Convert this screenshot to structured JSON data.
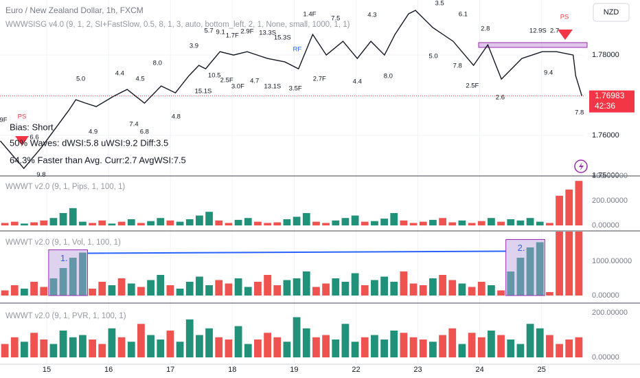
{
  "chart_data": [
    {
      "type": "line",
      "title": "Euro / New Zealand Dollar, 1h, FXCM",
      "subtitle": "WWWSISG v4.0 (9, 1, 2, SI+FastSlow, 0.5, 8, 1, 3, auto, bottom_left, 2, 1, None, small, 1000, 1, 1)",
      "currency": "NZD",
      "info": [
        "Bias: Short",
        "50% Waves: dWSI:5.8 uWSI:9.2 Diff:3.5",
        "64.3% Faster than Avg. Curr:2.7 AvgWSI:7.5"
      ],
      "color": "#131722",
      "x": [
        -0.75,
        -0.37,
        -0.09,
        0.36,
        0.47,
        0.63,
        0.8,
        1.08,
        1.3,
        1.58,
        1.85,
        2.08,
        2.3,
        2.46,
        2.57,
        2.8,
        3.02,
        3.24,
        3.57,
        3.85,
        4.07,
        4.3,
        4.52,
        4.79,
        5.02,
        5.24,
        5.46,
        5.63,
        5.85,
        5.96,
        6.24,
        6.57,
        6.9,
        7.13,
        7.35,
        7.68,
        8.01,
        8.24,
        8.51,
        8.55,
        8.65
      ],
      "values": [
        1.75863,
        1.75179,
        1.75692,
        1.76632,
        1.76889,
        1.76803,
        1.76718,
        1.76974,
        1.77145,
        1.76803,
        1.77231,
        1.7706,
        1.77487,
        1.77744,
        1.77658,
        1.78085,
        1.78,
        1.78085,
        1.77915,
        1.77829,
        1.77658,
        1.78513,
        1.78,
        1.78342,
        1.77915,
        1.78342,
        1.78,
        1.78513,
        1.79026,
        1.79111,
        1.78684,
        1.78342,
        1.77744,
        1.78256,
        1.77402,
        1.77915,
        1.78085,
        1.78085,
        1.78,
        1.77487,
        1.76983
      ],
      "last_price": 1.76983,
      "last_price_label": "1.76983",
      "last_price_color": "#f23645",
      "countdown": "42:36",
      "xlim": [
        -0.755,
        8.68
      ],
      "ylim": [
        1.7501,
        1.7937
      ],
      "xticks": [
        {
          "value": 0,
          "label": "15"
        },
        {
          "value": 1,
          "label": "16"
        },
        {
          "value": 2,
          "label": "17"
        },
        {
          "value": 3,
          "label": "18"
        },
        {
          "value": 4,
          "label": "19"
        },
        {
          "value": 5,
          "label": "22"
        },
        {
          "value": 6,
          "label": "23"
        },
        {
          "value": 7,
          "label": "24"
        },
        {
          "value": 8,
          "label": "25"
        }
      ],
      "yticks": [
        {
          "value": 1.75,
          "label": "1.75000"
        },
        {
          "value": 1.76,
          "label": "1.76000"
        },
        {
          "value": 1.78,
          "label": "1.78000"
        }
      ],
      "grid": true,
      "annotation_color": "#131722",
      "annotations": [
        {
          "text": "9F",
          "x": -0.7,
          "y": 1.76376
        },
        {
          "text": "PS",
          "x": -0.4,
          "y": 1.76462,
          "color": "#f23645"
        },
        {
          "text": "6.6",
          "x": -0.2,
          "y": 1.75949
        },
        {
          "text": "9.8",
          "x": -0.09,
          "y": 1.7502
        },
        {
          "text": "5.0",
          "x": 0.55,
          "y": 1.77402
        },
        {
          "text": "4.9",
          "x": 0.75,
          "y": 1.76085
        },
        {
          "text": "4.4",
          "x": 1.18,
          "y": 1.77538
        },
        {
          "text": "7.4",
          "x": 1.41,
          "y": 1.76274
        },
        {
          "text": "6.8",
          "x": 1.58,
          "y": 1.76085
        },
        {
          "text": "4.5",
          "x": 1.51,
          "y": 1.77402
        },
        {
          "text": "8.0",
          "x": 1.79,
          "y": 1.77795
        },
        {
          "text": "4.8",
          "x": 2.09,
          "y": 1.76462
        },
        {
          "text": "3.9",
          "x": 2.38,
          "y": 1.78222
        },
        {
          "text": "15.1S",
          "x": 2.53,
          "y": 1.77094
        },
        {
          "text": "5.7",
          "x": 2.62,
          "y": 1.78598
        },
        {
          "text": "9.1",
          "x": 2.81,
          "y": 1.78564
        },
        {
          "text": "1.7F",
          "x": 3.0,
          "y": 1.78479
        },
        {
          "text": "2.9F",
          "x": 3.24,
          "y": 1.78581
        },
        {
          "text": "10.5",
          "x": 2.71,
          "y": 1.77487
        },
        {
          "text": "2.5F",
          "x": 2.91,
          "y": 1.77368
        },
        {
          "text": "3.0F",
          "x": 3.09,
          "y": 1.77214
        },
        {
          "text": "4.7",
          "x": 3.36,
          "y": 1.7735
        },
        {
          "text": "13.3S",
          "x": 3.57,
          "y": 1.78547
        },
        {
          "text": "15.3S",
          "x": 3.81,
          "y": 1.78427
        },
        {
          "text": "13.1S",
          "x": 3.65,
          "y": 1.77214
        },
        {
          "text": "3.5F",
          "x": 4.02,
          "y": 1.77162
        },
        {
          "text": "RF",
          "x": 4.05,
          "y": 1.78137,
          "color": "#2962ff"
        },
        {
          "text": "1.4F",
          "x": 4.25,
          "y": 1.79009
        },
        {
          "text": "7.5",
          "x": 4.67,
          "y": 1.78906
        },
        {
          "text": "2.7F",
          "x": 4.41,
          "y": 1.77402
        },
        {
          "text": "4.3",
          "x": 5.26,
          "y": 1.78991
        },
        {
          "text": "4.4",
          "x": 5.02,
          "y": 1.77333
        },
        {
          "text": "8.0",
          "x": 5.52,
          "y": 1.7747
        },
        {
          "text": "5.0",
          "x": 6.25,
          "y": 1.77966
        },
        {
          "text": "3.5",
          "x": 6.35,
          "y": 1.79282
        },
        {
          "text": "6.1",
          "x": 6.73,
          "y": 1.79009
        },
        {
          "text": "2.8",
          "x": 7.09,
          "y": 1.7865
        },
        {
          "text": "7.8",
          "x": 6.64,
          "y": 1.77726
        },
        {
          "text": "2.5F",
          "x": 6.88,
          "y": 1.77231
        },
        {
          "text": "2.6",
          "x": 7.33,
          "y": 1.7694
        },
        {
          "text": "12.9S",
          "x": 7.94,
          "y": 1.78598
        },
        {
          "text": "2.7",
          "x": 8.21,
          "y": 1.78598
        },
        {
          "text": "PS",
          "x": 8.37,
          "y": 1.7894,
          "color": "#f23645"
        },
        {
          "text": "9.4",
          "x": 8.11,
          "y": 1.77556
        },
        {
          "text": "7.8",
          "x": 8.61,
          "y": 1.76564
        }
      ]
    },
    {
      "type": "bar",
      "title": "WWWT v2.0 (9, 1, Pips, 1, 100, 1)",
      "values": [
        20,
        30,
        15,
        25,
        40,
        60,
        100,
        140,
        30,
        20,
        40,
        15,
        30,
        50,
        20,
        35,
        60,
        40,
        30,
        50,
        80,
        110,
        40,
        20,
        45,
        60,
        30,
        20,
        25,
        50,
        70,
        100,
        30,
        20,
        40,
        60,
        80,
        30,
        35,
        55,
        100,
        40,
        20,
        30,
        45,
        60,
        25,
        40,
        20,
        35,
        60,
        30,
        50,
        40,
        60,
        30,
        20,
        240,
        290,
        360
      ],
      "colors": [
        "#ef5350",
        "#ef5350",
        "#22917a",
        "#ef5350",
        "#ef5350",
        "#22917a",
        "#22917a",
        "#22917a",
        "#22917a",
        "#ef5350",
        "#ef5350",
        "#22917a",
        "#ef5350",
        "#22917a",
        "#ef5350",
        "#22917a",
        "#22917a",
        "#ef5350",
        "#22917a",
        "#22917a",
        "#22917a",
        "#22917a",
        "#ef5350",
        "#ef5350",
        "#22917a",
        "#22917a",
        "#ef5350",
        "#ef5350",
        "#ef5350",
        "#22917a",
        "#22917a",
        "#22917a",
        "#ef5350",
        "#ef5350",
        "#22917a",
        "#22917a",
        "#22917a",
        "#ef5350",
        "#22917a",
        "#22917a",
        "#22917a",
        "#ef5350",
        "#ef5350",
        "#ef5350",
        "#22917a",
        "#ef5350",
        "#ef5350",
        "#22917a",
        "#ef5350",
        "#ef5350",
        "#22917a",
        "#ef5350",
        "#22917a",
        "#22917a",
        "#22917a",
        "#22917a",
        "#ef5350",
        "#ef5350",
        "#ef5350",
        "#ef5350"
      ],
      "ylim": [
        0,
        400
      ],
      "yticks": [
        {
          "value": 0,
          "label": "0.00000"
        },
        {
          "value": 200,
          "label": "200.00000"
        },
        {
          "value": 400,
          "label": "400.00000"
        }
      ]
    },
    {
      "type": "bar",
      "title": "WWWT v2.0 (9, 1, Vol, 1, 100, 1)",
      "values": [
        150,
        300,
        200,
        400,
        250,
        500,
        800,
        1100,
        1250,
        200,
        400,
        300,
        500,
        350,
        250,
        450,
        600,
        300,
        200,
        400,
        550,
        300,
        450,
        350,
        500,
        250,
        400,
        600,
        300,
        450,
        500,
        700,
        250,
        350,
        500,
        400,
        650,
        300,
        450,
        550,
        400,
        700,
        350,
        300,
        500,
        600,
        450,
        350,
        250,
        400,
        300,
        150,
        700,
        1100,
        1400,
        1550,
        100,
        1860,
        1860,
        1860
      ],
      "colors": [
        "#ef5350",
        "#ef5350",
        "#22917a",
        "#ef5350",
        "#ef5350",
        "#22917a",
        "#22917a",
        "#22917a",
        "#22917a",
        "#ef5350",
        "#ef5350",
        "#22917a",
        "#ef5350",
        "#22917a",
        "#ef5350",
        "#22917a",
        "#22917a",
        "#ef5350",
        "#22917a",
        "#22917a",
        "#22917a",
        "#22917a",
        "#ef5350",
        "#ef5350",
        "#22917a",
        "#22917a",
        "#ef5350",
        "#ef5350",
        "#ef5350",
        "#22917a",
        "#22917a",
        "#22917a",
        "#ef5350",
        "#ef5350",
        "#22917a",
        "#22917a",
        "#22917a",
        "#ef5350",
        "#22917a",
        "#22917a",
        "#22917a",
        "#ef5350",
        "#ef5350",
        "#ef5350",
        "#22917a",
        "#ef5350",
        "#ef5350",
        "#22917a",
        "#ef5350",
        "#ef5350",
        "#22917a",
        "#ef5350",
        "#22917a",
        "#22917a",
        "#22917a",
        "#22917a",
        "#ef5350",
        "#ef5350",
        "#ef5350",
        "#ef5350"
      ],
      "boxes": [
        {
          "label": "1.",
          "from": 5,
          "to": 8
        },
        {
          "label": "2.",
          "from": 52,
          "to": 55
        }
      ],
      "ylim": [
        0,
        1860
      ],
      "yticks": [
        {
          "value": 0,
          "label": "0.00000"
        },
        {
          "value": 1000,
          "label": "1000.00000"
        }
      ]
    },
    {
      "type": "bar",
      "title": "WWWT v2.0 (9, 1, PVR, 1, 100, 1)",
      "values": [
        60,
        90,
        70,
        110,
        80,
        60,
        120,
        90,
        100,
        80,
        60,
        130,
        90,
        70,
        150,
        100,
        80,
        120,
        70,
        170,
        100,
        130,
        90,
        80,
        140,
        60,
        80,
        110,
        90,
        70,
        180,
        130,
        90,
        100,
        80,
        150,
        70,
        90,
        100,
        80,
        120,
        110,
        90,
        80,
        70,
        100,
        130,
        60,
        110,
        90,
        120,
        100,
        80,
        60,
        150,
        130,
        100,
        60,
        80,
        90
      ],
      "colors": [
        "#ef5350",
        "#ef5350",
        "#22917a",
        "#ef5350",
        "#ef5350",
        "#22917a",
        "#22917a",
        "#22917a",
        "#22917a",
        "#ef5350",
        "#ef5350",
        "#22917a",
        "#ef5350",
        "#22917a",
        "#ef5350",
        "#22917a",
        "#22917a",
        "#ef5350",
        "#22917a",
        "#22917a",
        "#22917a",
        "#22917a",
        "#ef5350",
        "#ef5350",
        "#22917a",
        "#22917a",
        "#ef5350",
        "#ef5350",
        "#ef5350",
        "#22917a",
        "#22917a",
        "#22917a",
        "#ef5350",
        "#ef5350",
        "#22917a",
        "#22917a",
        "#22917a",
        "#ef5350",
        "#22917a",
        "#22917a",
        "#22917a",
        "#ef5350",
        "#ef5350",
        "#ef5350",
        "#22917a",
        "#ef5350",
        "#ef5350",
        "#22917a",
        "#ef5350",
        "#ef5350",
        "#22917a",
        "#ef5350",
        "#22917a",
        "#22917a",
        "#22917a",
        "#22917a",
        "#ef5350",
        "#ef5350",
        "#ef5350",
        "#ef5350"
      ],
      "ylim": [
        0,
        240
      ],
      "yticks": [
        {
          "value": 0,
          "label": "0.00000"
        },
        {
          "value": 200,
          "label": "200.00000"
        }
      ]
    }
  ]
}
